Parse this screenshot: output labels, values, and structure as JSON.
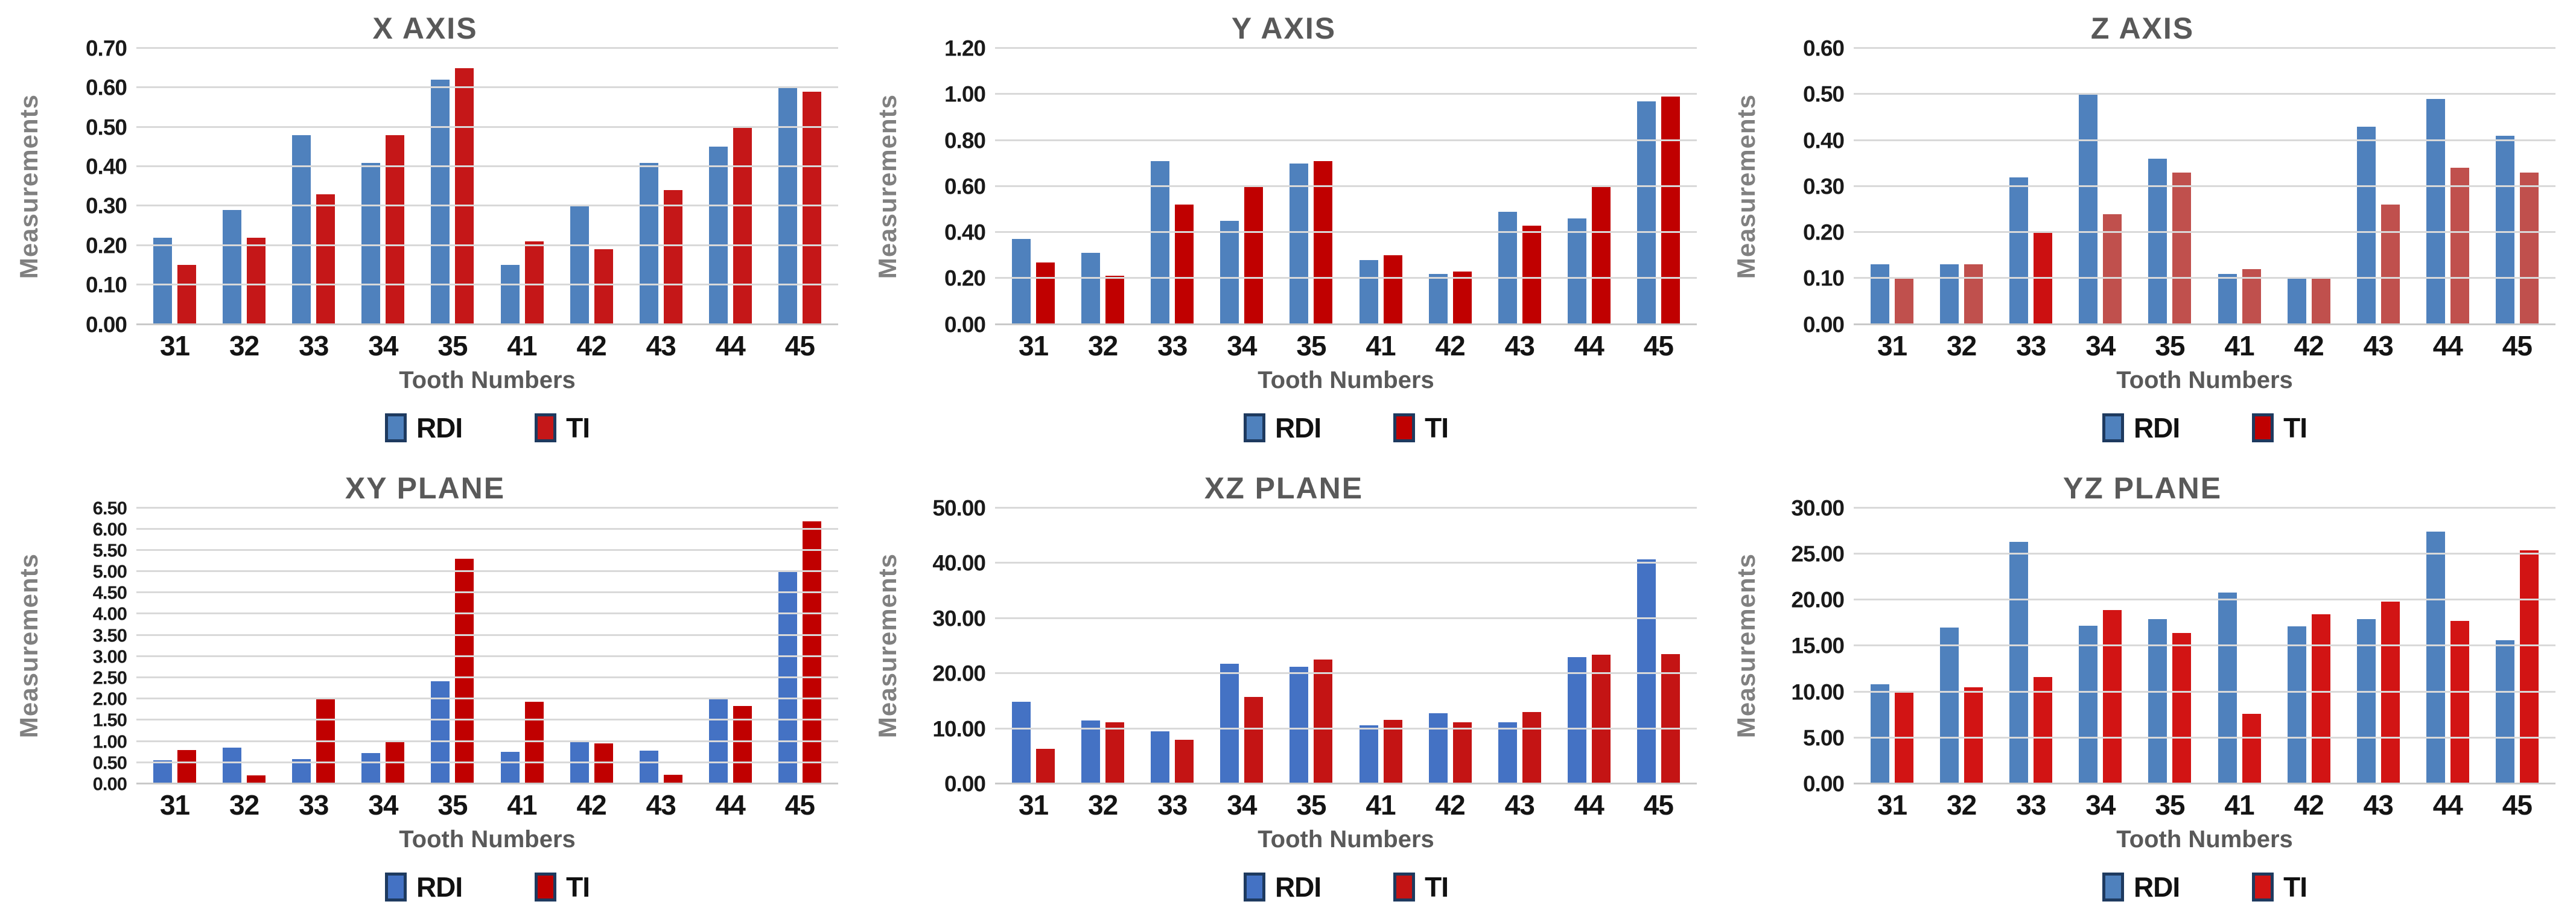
{
  "styles": {
    "background": "#ffffff",
    "grid_color": "#d9d9d9",
    "title_color": "#595959",
    "y_axis_title_color": "#808080",
    "x_axis_title_color": "#595959",
    "tick_label_color": "#1a1a1a",
    "legend_swatch_border": "#1e3a5f"
  },
  "chart_data": [
    {
      "type": "bar",
      "title": "X AXIS",
      "xlabel": "Tooth Numbers",
      "ylabel": "Measurements",
      "ylim": [
        0,
        0.7
      ],
      "ystep": 0.1,
      "yticks": [
        "0.00",
        "0.10",
        "0.20",
        "0.30",
        "0.40",
        "0.50",
        "0.60",
        "0.70"
      ],
      "grid": true,
      "legend_position": "bottom",
      "categories": [
        "31",
        "32",
        "33",
        "34",
        "35",
        "41",
        "42",
        "43",
        "44",
        "45"
      ],
      "series": [
        {
          "name": "RDI",
          "color": "#4f81bd",
          "values": [
            0.22,
            0.29,
            0.48,
            0.41,
            0.62,
            0.15,
            0.3,
            0.41,
            0.45,
            0.6
          ]
        },
        {
          "name": "TI",
          "color": "#c51718",
          "values": [
            0.15,
            0.22,
            0.33,
            0.48,
            0.65,
            0.21,
            0.19,
            0.34,
            0.5,
            0.59
          ]
        }
      ]
    },
    {
      "type": "bar",
      "title": "Y AXIS",
      "xlabel": "Tooth Numbers",
      "ylabel": "Measurements",
      "ylim": [
        0,
        1.2
      ],
      "ystep": 0.2,
      "yticks": [
        "0.00",
        "0.20",
        "0.40",
        "0.60",
        "0.80",
        "1.00",
        "1.20"
      ],
      "grid": true,
      "legend_position": "bottom",
      "categories": [
        "31",
        "32",
        "33",
        "34",
        "35",
        "41",
        "42",
        "43",
        "44",
        "45"
      ],
      "series": [
        {
          "name": "RDI",
          "color": "#4f81bd",
          "values": [
            0.37,
            0.31,
            0.71,
            0.45,
            0.7,
            0.28,
            0.22,
            0.49,
            0.46,
            0.97
          ]
        },
        {
          "name": "TI",
          "color": "#c00000",
          "values": [
            0.27,
            0.21,
            0.52,
            0.6,
            0.71,
            0.3,
            0.23,
            0.43,
            0.6,
            0.99
          ]
        }
      ]
    },
    {
      "type": "bar",
      "title": "Z AXIS",
      "xlabel": "Tooth Numbers",
      "ylabel": "Measurements",
      "ylim": [
        0,
        0.6
      ],
      "ystep": 0.1,
      "yticks": [
        "0.00",
        "0.10",
        "0.20",
        "0.30",
        "0.40",
        "0.50",
        "0.60"
      ],
      "grid": true,
      "legend_position": "bottom",
      "categories": [
        "31",
        "32",
        "33",
        "34",
        "35",
        "41",
        "42",
        "43",
        "44",
        "45"
      ],
      "series": [
        {
          "name": "RDI",
          "color": "#4f81bd",
          "values": [
            0.13,
            0.13,
            0.32,
            0.5,
            0.36,
            0.11,
            0.1,
            0.43,
            0.49,
            0.41
          ]
        },
        {
          "name": "TI",
          "color": "#c0504d",
          "legend_color": "#c00000",
          "bar_colors": [
            "#c0504d",
            "#c0504d",
            "#cc1011",
            "#c0504d",
            "#c0504d",
            "#c0504d",
            "#c0504d",
            "#c0504d",
            "#c0504d",
            "#c0504d"
          ],
          "values": [
            0.1,
            0.13,
            0.2,
            0.24,
            0.33,
            0.12,
            0.1,
            0.26,
            0.34,
            0.33
          ]
        }
      ]
    },
    {
      "type": "bar",
      "title": "XY PLANE",
      "xlabel": "Tooth Numbers",
      "ylabel": "Measurements",
      "ylim": [
        0,
        6.5
      ],
      "ystep": 0.5,
      "yticks": [
        "0.00",
        "0.50",
        "1.00",
        "1.50",
        "2.00",
        "2.50",
        "3.00",
        "3.50",
        "4.00",
        "4.50",
        "5.00",
        "5.50",
        "6.00",
        "6.50"
      ],
      "grid": true,
      "legend_position": "bottom",
      "categories": [
        "31",
        "32",
        "33",
        "34",
        "35",
        "41",
        "42",
        "43",
        "44",
        "45"
      ],
      "series": [
        {
          "name": "RDI",
          "color": "#4472c4",
          "values": [
            0.55,
            0.85,
            0.58,
            0.72,
            2.42,
            0.75,
            1.02,
            0.78,
            2.0,
            5.0
          ]
        },
        {
          "name": "TI",
          "color": "#c00000",
          "values": [
            0.8,
            0.2,
            2.0,
            0.98,
            5.3,
            1.93,
            0.95,
            0.22,
            1.83,
            6.18
          ]
        }
      ]
    },
    {
      "type": "bar",
      "title": "XZ PLANE",
      "xlabel": "Tooth Numbers",
      "ylabel": "Measurements",
      "ylim": [
        0,
        50.0
      ],
      "ystep": 10.0,
      "yticks": [
        "0.00",
        "10.00",
        "20.00",
        "30.00",
        "40.00",
        "50.00"
      ],
      "grid": true,
      "legend_position": "bottom",
      "categories": [
        "31",
        "32",
        "33",
        "34",
        "35",
        "41",
        "42",
        "43",
        "44",
        "45"
      ],
      "series": [
        {
          "name": "RDI",
          "color": "#4472c4",
          "values": [
            14.9,
            11.5,
            9.5,
            21.8,
            21.2,
            10.6,
            12.8,
            11.2,
            23.0,
            40.7
          ]
        },
        {
          "name": "TI",
          "color": "#c41414",
          "values": [
            6.3,
            11.1,
            8.0,
            15.7,
            22.5,
            11.6,
            11.1,
            13.0,
            23.4,
            23.5
          ]
        }
      ]
    },
    {
      "type": "bar",
      "title": "YZ PLANE",
      "xlabel": "Tooth Numbers",
      "ylabel": "Measurements",
      "ylim": [
        0,
        30.0
      ],
      "ystep": 5.0,
      "yticks": [
        "0.00",
        "5.00",
        "10.00",
        "15.00",
        "20.00",
        "25.00",
        "30.00"
      ],
      "grid": true,
      "legend_position": "bottom",
      "categories": [
        "31",
        "32",
        "33",
        "34",
        "35",
        "41",
        "42",
        "43",
        "44",
        "45"
      ],
      "series": [
        {
          "name": "RDI",
          "color": "#4f81bd",
          "values": [
            10.8,
            17.0,
            26.3,
            17.2,
            17.9,
            20.8,
            17.1,
            17.9,
            27.4,
            15.6
          ]
        },
        {
          "name": "TI",
          "color": "#d21414",
          "values": [
            10.1,
            10.5,
            11.6,
            18.9,
            16.4,
            7.6,
            18.4,
            19.8,
            17.7,
            25.4
          ]
        }
      ]
    }
  ]
}
